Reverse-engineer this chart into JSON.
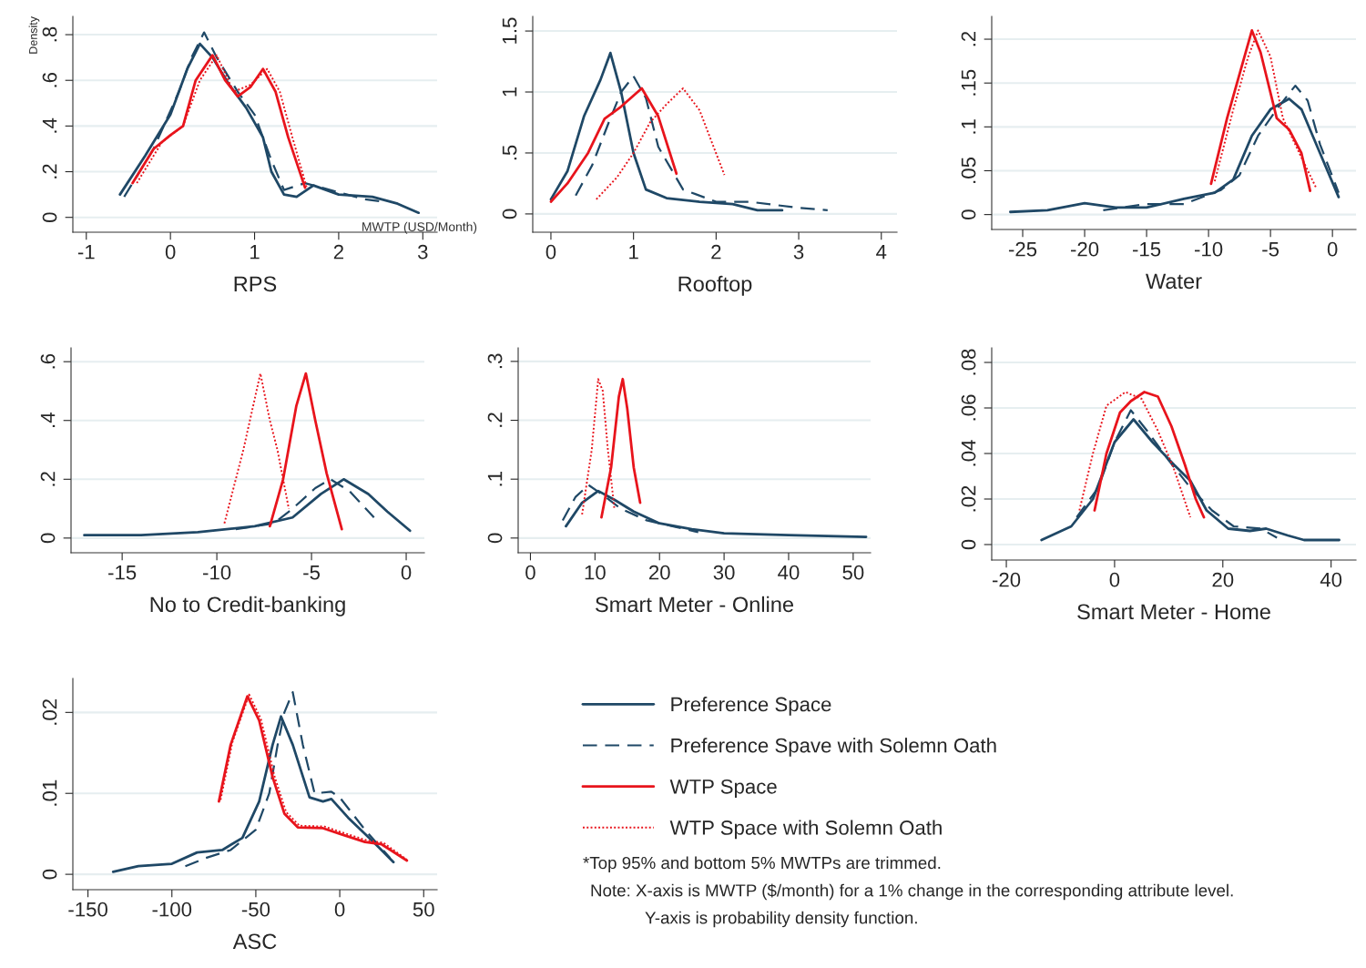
{
  "chart_data": [
    {
      "type": "line",
      "xlabel": "RPS",
      "ylabel": "Density",
      "annotations": [
        "MWTP (USD/Month)"
      ],
      "xlim": [
        -1.16,
        3.17
      ],
      "ylim": [
        -0.065,
        0.88
      ],
      "xticks": [
        -1,
        0,
        1,
        2,
        3
      ],
      "yticks": [
        0,
        {
          "value": 0.2,
          "label": ".2"
        },
        {
          "value": 0.4,
          "label": ".4"
        },
        {
          "value": 0.6,
          "label": ".6"
        },
        {
          "value": 0.8,
          "label": ".8"
        }
      ],
      "grid": "y",
      "series": [
        {
          "color": "#1f4866",
          "line_style": "solid",
          "x": [
            -0.6,
            -0.3,
            0,
            0.2,
            0.35,
            0.5,
            0.7,
            0.9,
            1.1,
            1.2,
            1.35,
            1.5,
            1.7,
            2.0,
            2.4,
            2.7,
            2.95
          ],
          "values": [
            0.1,
            0.27,
            0.45,
            0.65,
            0.76,
            0.7,
            0.58,
            0.48,
            0.35,
            0.2,
            0.1,
            0.09,
            0.14,
            0.1,
            0.09,
            0.06,
            0.02
          ]
        },
        {
          "color": "#1f4866",
          "line_style": "dashed",
          "x": [
            -0.55,
            -0.2,
            0.1,
            0.25,
            0.4,
            0.55,
            0.8,
            1.0,
            1.2,
            1.35,
            1.6,
            2.0,
            2.3,
            2.5
          ],
          "values": [
            0.09,
            0.3,
            0.55,
            0.7,
            0.81,
            0.7,
            0.55,
            0.45,
            0.25,
            0.12,
            0.15,
            0.11,
            0.08,
            0.07
          ]
        },
        {
          "color": "#e8141c",
          "line_style": "solid",
          "x": [
            -0.45,
            -0.2,
            0,
            0.15,
            0.3,
            0.5,
            0.65,
            0.8,
            0.95,
            1.1,
            1.25,
            1.4,
            1.6
          ],
          "values": [
            0.15,
            0.3,
            0.36,
            0.4,
            0.6,
            0.71,
            0.6,
            0.53,
            0.57,
            0.65,
            0.55,
            0.35,
            0.13
          ]
        },
        {
          "color": "#e8141c",
          "line_style": "dotted",
          "x": [
            -0.4,
            -0.1,
            0.15,
            0.35,
            0.55,
            0.75,
            0.95,
            1.15,
            1.3,
            1.45,
            1.62
          ],
          "values": [
            0.15,
            0.33,
            0.4,
            0.6,
            0.71,
            0.55,
            0.58,
            0.65,
            0.55,
            0.35,
            0.13
          ]
        }
      ]
    },
    {
      "type": "line",
      "xlabel": "Rooftop",
      "xlim": [
        -0.22,
        4.19
      ],
      "ylim": [
        -0.15,
        1.62
      ],
      "xticks": [
        0,
        1,
        2,
        3,
        4
      ],
      "yticks": [
        0,
        {
          "value": 0.5,
          "label": ".5"
        },
        1,
        1.5
      ],
      "grid": "y",
      "series": [
        {
          "color": "#1f4866",
          "line_style": "solid",
          "x": [
            0,
            0.2,
            0.4,
            0.6,
            0.72,
            0.85,
            1.0,
            1.15,
            1.4,
            1.8,
            2.2,
            2.5,
            2.8
          ],
          "values": [
            0.12,
            0.35,
            0.8,
            1.1,
            1.32,
            1.0,
            0.5,
            0.2,
            0.13,
            0.1,
            0.08,
            0.03,
            0.03
          ]
        },
        {
          "color": "#1f4866",
          "line_style": "dashed",
          "x": [
            0.3,
            0.5,
            0.7,
            0.85,
            1.0,
            1.15,
            1.3,
            1.6,
            2.0,
            2.4,
            3.0,
            3.35
          ],
          "values": [
            0.15,
            0.4,
            0.75,
            1.0,
            1.13,
            0.95,
            0.55,
            0.2,
            0.1,
            0.1,
            0.05,
            0.03
          ]
        },
        {
          "color": "#e8141c",
          "line_style": "solid",
          "x": [
            0,
            0.2,
            0.45,
            0.65,
            0.85,
            1.1,
            1.3,
            1.52
          ],
          "values": [
            0.1,
            0.25,
            0.5,
            0.78,
            0.88,
            1.03,
            0.8,
            0.33
          ]
        },
        {
          "color": "#e8141c",
          "line_style": "dotted",
          "x": [
            0.55,
            0.8,
            1.0,
            1.2,
            1.4,
            1.6,
            1.8,
            2.1
          ],
          "values": [
            0.12,
            0.3,
            0.5,
            0.75,
            0.9,
            1.03,
            0.85,
            0.32
          ]
        }
      ]
    },
    {
      "type": "line",
      "xlabel": "Water",
      "xlim": [
        -27.5,
        1.9
      ],
      "ylim": [
        -0.017,
        0.226
      ],
      "xticks": [
        -25,
        -20,
        -15,
        -10,
        -5,
        0
      ],
      "yticks": [
        0,
        {
          "value": 0.05,
          "label": ".05"
        },
        {
          "value": 0.1,
          "label": ".1"
        },
        {
          "value": 0.15,
          "label": ".15"
        },
        {
          "value": 0.2,
          "label": ".2"
        }
      ],
      "grid": "y",
      "series": [
        {
          "color": "#1f4866",
          "line_style": "solid",
          "x": [
            -26,
            -23,
            -20,
            -17.5,
            -15,
            -12,
            -9.5,
            -8,
            -6.5,
            -5,
            -3.5,
            -2.5,
            -1,
            0.5
          ],
          "values": [
            0.003,
            0.005,
            0.013,
            0.008,
            0.008,
            0.018,
            0.025,
            0.04,
            0.09,
            0.12,
            0.132,
            0.12,
            0.07,
            0.02
          ]
        },
        {
          "color": "#1f4866",
          "line_style": "dashed",
          "x": [
            -18.5,
            -15,
            -12,
            -9,
            -7.5,
            -6,
            -4.5,
            -3,
            -2,
            -1,
            0.5
          ],
          "values": [
            0.005,
            0.012,
            0.012,
            0.028,
            0.045,
            0.09,
            0.12,
            0.147,
            0.13,
            0.08,
            0.025
          ]
        },
        {
          "color": "#e8141c",
          "line_style": "solid",
          "x": [
            -9.8,
            -8.5,
            -7,
            -6.5,
            -5.8,
            -4.5,
            -3.5,
            -2.5,
            -1.8
          ],
          "values": [
            0.035,
            0.11,
            0.185,
            0.21,
            0.185,
            0.11,
            0.097,
            0.07,
            0.027
          ]
        },
        {
          "color": "#e8141c",
          "line_style": "dotted",
          "x": [
            -9.5,
            -8,
            -6.8,
            -6,
            -5,
            -4,
            -2.5,
            -1.3
          ],
          "values": [
            0.038,
            0.12,
            0.18,
            0.21,
            0.18,
            0.11,
            0.065,
            0.03
          ]
        }
      ]
    },
    {
      "type": "line",
      "xlabel": "No to Credit-banking",
      "xlim": [
        -17.7,
        0.96
      ],
      "ylim": [
        -0.05,
        0.647
      ],
      "xticks": [
        -15,
        -10,
        -5,
        0
      ],
      "yticks": [
        0,
        {
          "value": 0.2,
          "label": ".2"
        },
        {
          "value": 0.4,
          "label": ".4"
        },
        {
          "value": 0.6,
          "label": ".6"
        }
      ],
      "grid": "y",
      "series": [
        {
          "color": "#1f4866",
          "line_style": "solid",
          "x": [
            -17,
            -14,
            -11,
            -8,
            -6,
            -4.5,
            -3.3,
            -2,
            -1,
            0.2
          ],
          "values": [
            0.01,
            0.01,
            0.02,
            0.04,
            0.07,
            0.15,
            0.2,
            0.15,
            0.09,
            0.025
          ]
        },
        {
          "color": "#1f4866",
          "line_style": "dashed",
          "x": [
            -9,
            -7,
            -6,
            -4.8,
            -4,
            -3,
            -1.7
          ],
          "values": [
            0.03,
            0.05,
            0.1,
            0.17,
            0.2,
            0.16,
            0.07
          ]
        },
        {
          "color": "#e8141c",
          "line_style": "solid",
          "x": [
            -7.2,
            -6.5,
            -5.8,
            -5.3,
            -4.8,
            -4.2,
            -3.4
          ],
          "values": [
            0.04,
            0.2,
            0.45,
            0.56,
            0.4,
            0.22,
            0.03
          ]
        },
        {
          "color": "#e8141c",
          "line_style": "dotted",
          "x": [
            -9.6,
            -8.6,
            -7.7,
            -7.2,
            -6.8,
            -6.2
          ],
          "values": [
            0.05,
            0.3,
            0.56,
            0.4,
            0.3,
            0.1
          ]
        }
      ]
    },
    {
      "type": "line",
      "xlabel": "Smart Meter - Online",
      "xlim": [
        -1.9,
        52.7
      ],
      "ylim": [
        -0.025,
        0.323
      ],
      "xticks": [
        0,
        10,
        20,
        30,
        40,
        50
      ],
      "yticks": [
        0,
        {
          "value": 0.1,
          "label": ".1"
        },
        {
          "value": 0.2,
          "label": ".2"
        },
        {
          "value": 0.3,
          "label": ".3"
        }
      ],
      "grid": "y",
      "series": [
        {
          "color": "#1f4866",
          "line_style": "solid",
          "x": [
            5.5,
            8,
            10.5,
            13,
            16,
            20,
            25,
            30,
            40,
            52
          ],
          "values": [
            0.02,
            0.06,
            0.08,
            0.065,
            0.045,
            0.025,
            0.015,
            0.008,
            0.005,
            0.002
          ]
        },
        {
          "color": "#1f4866",
          "line_style": "dashed",
          "x": [
            5,
            7,
            9,
            11,
            14,
            18,
            22,
            26
          ],
          "values": [
            0.03,
            0.07,
            0.09,
            0.075,
            0.05,
            0.03,
            0.02,
            0.01
          ]
        },
        {
          "color": "#e8141c",
          "line_style": "solid",
          "x": [
            11,
            12.5,
            13.7,
            14.3,
            15,
            16,
            17
          ],
          "values": [
            0.035,
            0.12,
            0.24,
            0.27,
            0.22,
            0.12,
            0.06
          ]
        },
        {
          "color": "#e8141c",
          "line_style": "dotted",
          "x": [
            8,
            9.5,
            10.5,
            11.2,
            12,
            13
          ],
          "values": [
            0.04,
            0.15,
            0.27,
            0.25,
            0.15,
            0.05
          ]
        }
      ]
    },
    {
      "type": "line",
      "xlabel": "Smart Meter - Home",
      "xlim": [
        -22.7,
        44.6
      ],
      "ylim": [
        -0.0068,
        0.0864
      ],
      "xticks": [
        -20,
        0,
        20,
        40
      ],
      "yticks": [
        0,
        {
          "value": 0.02,
          "label": ".02"
        },
        {
          "value": 0.04,
          "label": ".04"
        },
        {
          "value": 0.06,
          "label": ".06"
        },
        {
          "value": 0.08,
          "label": ".08"
        }
      ],
      "grid": "y",
      "series": [
        {
          "color": "#1f4866",
          "line_style": "solid",
          "x": [
            -13.5,
            -8,
            -4,
            0,
            3.5,
            7,
            11,
            14,
            17,
            21,
            25,
            28,
            32,
            35,
            41.5
          ],
          "values": [
            0.002,
            0.008,
            0.02,
            0.045,
            0.055,
            0.045,
            0.035,
            0.028,
            0.015,
            0.007,
            0.006,
            0.007,
            0.004,
            0.002,
            0.002
          ]
        },
        {
          "color": "#1f4866",
          "line_style": "dashed",
          "x": [
            -7,
            -3,
            0,
            3,
            6,
            10,
            14,
            18,
            22,
            27,
            30
          ],
          "values": [
            0.012,
            0.025,
            0.045,
            0.059,
            0.05,
            0.037,
            0.025,
            0.015,
            0.008,
            0.007,
            0.003
          ]
        },
        {
          "color": "#e8141c",
          "line_style": "solid",
          "x": [
            -3.7,
            -1.5,
            1,
            3,
            5.5,
            8,
            10.5,
            13,
            15,
            16.5
          ],
          "values": [
            0.015,
            0.04,
            0.058,
            0.063,
            0.067,
            0.065,
            0.052,
            0.035,
            0.02,
            0.012
          ]
        },
        {
          "color": "#e8141c",
          "line_style": "dotted",
          "x": [
            -6.5,
            -4,
            -1.5,
            2,
            5,
            8,
            11,
            14
          ],
          "values": [
            0.015,
            0.04,
            0.061,
            0.067,
            0.064,
            0.05,
            0.033,
            0.012
          ]
        }
      ]
    },
    {
      "type": "line",
      "xlabel": "ASC",
      "xlim": [
        -159,
        58
      ],
      "ylim": [
        -0.0019,
        0.0242
      ],
      "xticks": [
        -150,
        -100,
        -50,
        0,
        50
      ],
      "yticks": [
        0,
        {
          "value": 0.01,
          "label": ".01"
        },
        {
          "value": 0.02,
          "label": ".02"
        }
      ],
      "grid": "y",
      "legend": "right",
      "annotations": [
        "*Top 95% and bottom 5% MWTPs are trimmed.",
        "Note: X-axis is MWTP ($/month) for a 1% change in the corresponding attribute level.",
        "Y-axis is probability density function."
      ],
      "series": [
        {
          "name": "Preference Space",
          "color": "#1f4866",
          "line_style": "solid",
          "x": [
            -135,
            -120,
            -100,
            -85,
            -70,
            -58,
            -48,
            -40,
            -35,
            -28,
            -18,
            -10,
            -5,
            5,
            20,
            32
          ],
          "values": [
            0.0003,
            0.001,
            0.0013,
            0.0027,
            0.003,
            0.0045,
            0.009,
            0.016,
            0.0195,
            0.016,
            0.0095,
            0.009,
            0.0093,
            0.007,
            0.004,
            0.0015
          ]
        },
        {
          "name": "Preference Spave with Solemn Oath",
          "color": "#1f4866",
          "line_style": "dashed",
          "x": [
            -92,
            -80,
            -65,
            -50,
            -42,
            -37,
            -33,
            -28,
            -22,
            -15,
            -5,
            0,
            15,
            30
          ],
          "values": [
            0.001,
            0.002,
            0.003,
            0.0055,
            0.01,
            0.016,
            0.02,
            0.0225,
            0.016,
            0.01,
            0.0102,
            0.0095,
            0.0055,
            0.002
          ]
        },
        {
          "name": "WTP Space",
          "color": "#e8141c",
          "line_style": "solid",
          "x": [
            -72,
            -65,
            -55,
            -48,
            -40,
            -33,
            -25,
            -10,
            0,
            15,
            25,
            40
          ],
          "values": [
            0.009,
            0.016,
            0.022,
            0.019,
            0.012,
            0.0075,
            0.0058,
            0.0057,
            0.005,
            0.004,
            0.0037,
            0.0017
          ]
        },
        {
          "name": "WTP Space with Solemn Oath",
          "color": "#e8141c",
          "line_style": "dotted",
          "x": [
            -71,
            -64,
            -54,
            -47,
            -39,
            -32,
            -24,
            -9,
            1,
            16,
            26,
            40
          ],
          "values": [
            0.0092,
            0.0163,
            0.0222,
            0.0192,
            0.0122,
            0.0077,
            0.006,
            0.0059,
            0.0052,
            0.0042,
            0.0039,
            0.0018
          ]
        }
      ]
    }
  ]
}
